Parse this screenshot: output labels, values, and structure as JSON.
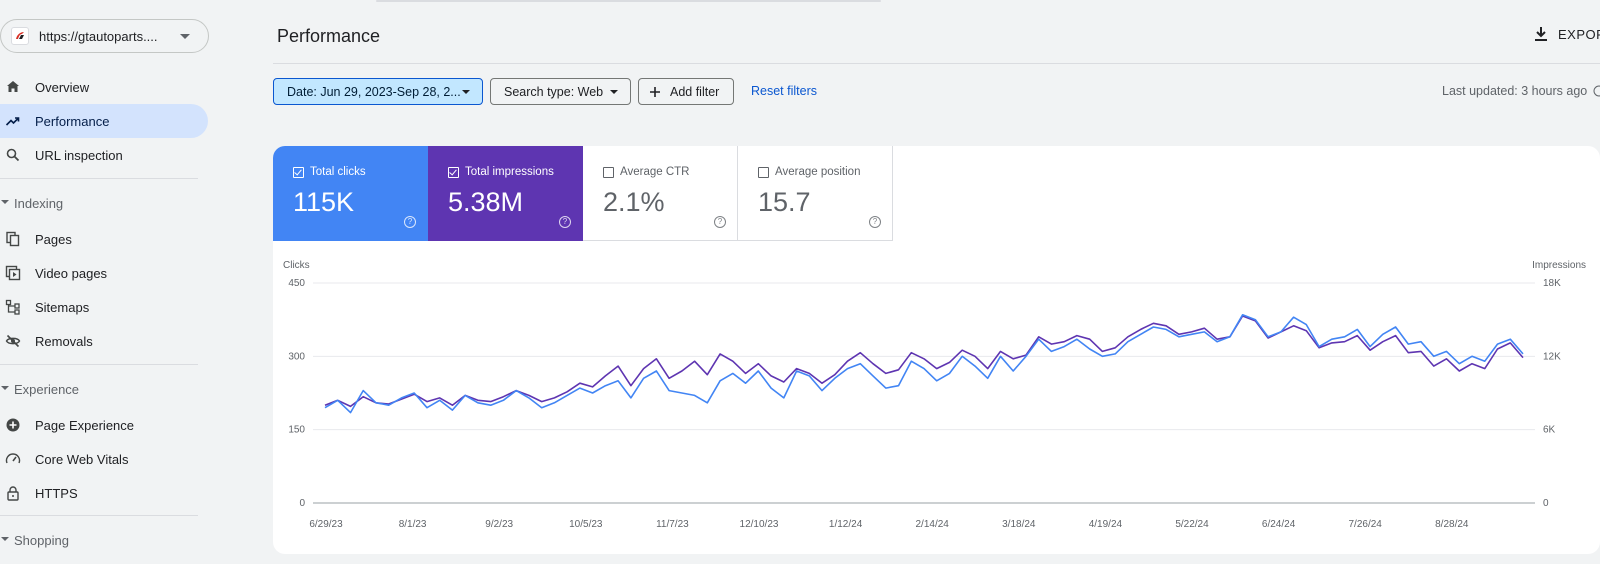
{
  "property": {
    "url": "https://gtautoparts...."
  },
  "header": {
    "title": "Performance",
    "export_label": "EXPORT"
  },
  "nav": {
    "overview": "Overview",
    "performance": "Performance",
    "url_inspection": "URL inspection",
    "indexing": "Indexing",
    "pages": "Pages",
    "video_pages": "Video pages",
    "sitemaps": "Sitemaps",
    "removals": "Removals",
    "experience": "Experience",
    "page_experience": "Page Experience",
    "core_web_vitals": "Core Web Vitals",
    "https": "HTTPS",
    "shopping": "Shopping"
  },
  "filters": {
    "date": "Date: Jun 29, 2023-Sep 28, 2...",
    "search_type": "Search type: Web",
    "add_filter": "Add filter",
    "reset": "Reset filters",
    "last_updated": "Last updated: 3 hours ago"
  },
  "metrics": {
    "clicks": {
      "label": "Total clicks",
      "value": "115K",
      "checked": true
    },
    "impressions": {
      "label": "Total impressions",
      "value": "5.38M",
      "checked": true
    },
    "ctr": {
      "label": "Average CTR",
      "value": "2.1%",
      "checked": false
    },
    "position": {
      "label": "Average position",
      "value": "15.7",
      "checked": false
    }
  },
  "colors": {
    "clicks": "#4285f4",
    "impressions": "#5e35b1",
    "active_nav": "#d3e3fd",
    "link": "#0b57d0"
  },
  "chart_data": {
    "type": "line",
    "left_axis_label": "Clicks",
    "right_axis_label": "Impressions",
    "left_ticks": [
      "0",
      "150",
      "300",
      "450"
    ],
    "right_ticks": [
      "0",
      "6K",
      "12K",
      "18K"
    ],
    "left_ylim": [
      0,
      450
    ],
    "right_ylim": [
      0,
      18000
    ],
    "x_tick_labels": [
      "6/29/23",
      "8/1/23",
      "9/2/23",
      "10/5/23",
      "11/7/23",
      "12/10/23",
      "1/12/24",
      "2/14/24",
      "3/18/24",
      "4/19/24",
      "5/22/24",
      "6/24/24",
      "7/26/24",
      "8/28/24"
    ],
    "x_range": [
      "6/29/23",
      "9/28/24"
    ],
    "grid": true,
    "series": [
      {
        "name": "Clicks",
        "axis": "left",
        "values": [
          195,
          210,
          185,
          230,
          205,
          200,
          215,
          225,
          195,
          210,
          190,
          220,
          205,
          200,
          210,
          230,
          215,
          195,
          205,
          220,
          235,
          225,
          240,
          250,
          215,
          255,
          270,
          230,
          225,
          220,
          205,
          250,
          265,
          245,
          270,
          235,
          215,
          270,
          260,
          230,
          255,
          275,
          285,
          260,
          235,
          240,
          290,
          275,
          250,
          265,
          300,
          280,
          255,
          300,
          270,
          300,
          335,
          310,
          320,
          335,
          315,
          300,
          305,
          330,
          345,
          360,
          355,
          340,
          345,
          350,
          330,
          340,
          385,
          375,
          340,
          350,
          380,
          365,
          320,
          335,
          340,
          355,
          320,
          345,
          360,
          325,
          330,
          300,
          310,
          285,
          300,
          290,
          325,
          335,
          305
        ]
      },
      {
        "name": "Impressions",
        "axis": "right",
        "values": [
          8000,
          8400,
          7900,
          8700,
          8200,
          8100,
          8500,
          8900,
          8300,
          8600,
          8000,
          8800,
          8400,
          8300,
          8700,
          9200,
          8800,
          8300,
          8600,
          9100,
          9800,
          9500,
          10400,
          11200,
          9600,
          11000,
          11800,
          10200,
          10800,
          11600,
          10500,
          12200,
          11600,
          10600,
          11400,
          10400,
          9900,
          11000,
          10600,
          9800,
          10500,
          11600,
          12300,
          11400,
          10600,
          10900,
          12300,
          11800,
          11000,
          11500,
          12500,
          12000,
          11000,
          12400,
          11800,
          12100,
          13600,
          13000,
          13200,
          13700,
          13400,
          12400,
          12700,
          13600,
          14200,
          14700,
          14500,
          13800,
          14000,
          14300,
          13400,
          13600,
          15300,
          14900,
          13500,
          14000,
          14500,
          14100,
          12700,
          13100,
          13200,
          13700,
          12500,
          13200,
          13700,
          12300,
          12400,
          11200,
          11800,
          10800,
          11400,
          11000,
          12600,
          13100,
          11900
        ]
      }
    ]
  }
}
